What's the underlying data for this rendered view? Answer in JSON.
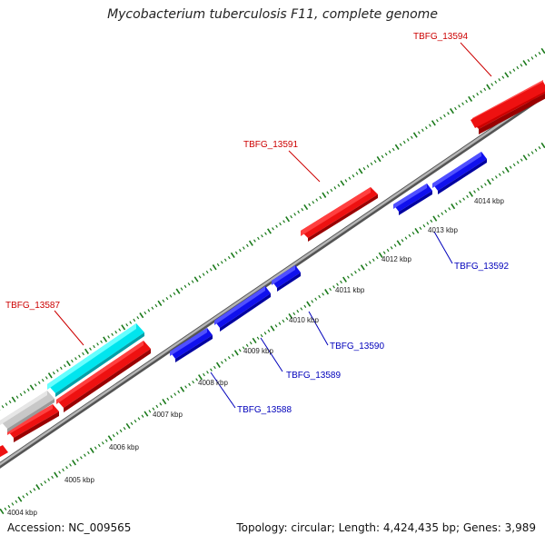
{
  "title": "Mycobacterium tuberculosis F11, complete genome",
  "footer": {
    "accession": "Accession: NC_009565",
    "topology": "Topology: circular; Length: 4,424,435 bp; Genes: 3,989"
  },
  "colors": {
    "forward_gene": "#ee0000",
    "reverse_gene": "#0000dd",
    "highlight_gene": "#00e5ee",
    "gray_feature": "#c8c8c8",
    "backbone": "#888888",
    "tick": "#1a7a1a",
    "forward_label": "#cc0000",
    "reverse_label": "#0000bb"
  },
  "ruler_labels": [
    "4004 kbp",
    "4005 kbp",
    "4006 kbp",
    "4007 kbp",
    "4008 kbp",
    "4009 kbp",
    "4010 kbp",
    "4011 kbp",
    "4012 kbp",
    "4013 kbp",
    "4014 kbp"
  ],
  "gene_labels": {
    "g13587": "TBFG_13587",
    "g13591": "TBFG_13591",
    "g13594": "TBFG_13594",
    "g13588": "TBFG_13588",
    "g13589": "TBFG_13589",
    "g13590": "TBFG_13590",
    "g13592": "TBFG_13592"
  }
}
